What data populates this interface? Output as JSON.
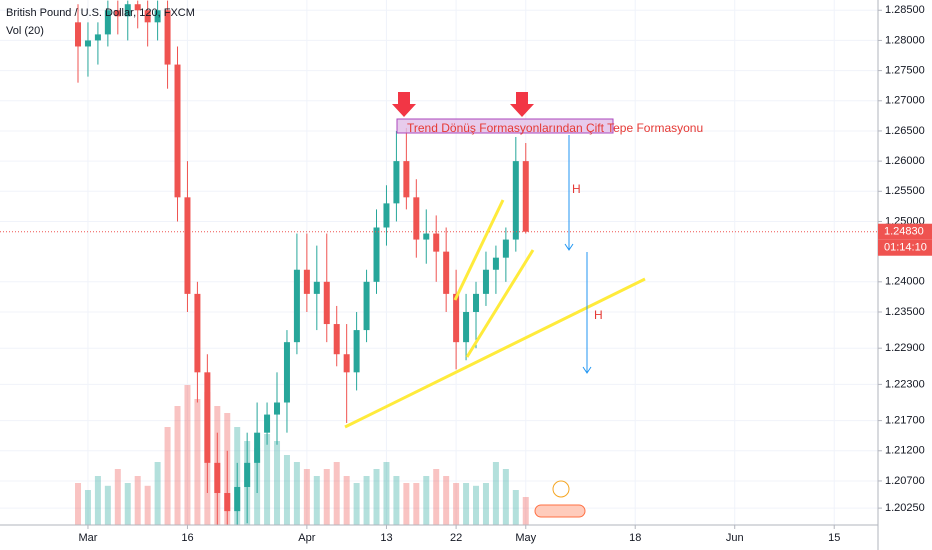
{
  "chart_data": {
    "type": "candlestick",
    "title": "British Pound / U.S. Dollar, 120, FXCM",
    "volume_title": "Vol (20)",
    "up_color": "#26a69a",
    "down_color": "#ef5350",
    "grid": true,
    "ylim": [
      1.1997,
      1.2867
    ],
    "xlim": [
      -8.84,
      79.4
    ],
    "yticks": [
      {
        "value": 1.285,
        "label": "1.28500"
      },
      {
        "value": 1.28,
        "label": "1.28000"
      },
      {
        "value": 1.275,
        "label": "1.27500"
      },
      {
        "value": 1.27,
        "label": "1.27000"
      },
      {
        "value": 1.265,
        "label": "1.26500"
      },
      {
        "value": 1.26,
        "label": "1.26000"
      },
      {
        "value": 1.255,
        "label": "1.25500"
      },
      {
        "value": 1.25,
        "label": "1.25000"
      },
      {
        "value": 1.24,
        "label": "1.24000"
      },
      {
        "value": 1.235,
        "label": "1.23500"
      },
      {
        "value": 1.229,
        "label": "1.22900"
      },
      {
        "value": 1.223,
        "label": "1.22300"
      },
      {
        "value": 1.217,
        "label": "1.21700"
      },
      {
        "value": 1.212,
        "label": "1.21200"
      },
      {
        "value": 1.207,
        "label": "1.20700"
      },
      {
        "value": 1.2025,
        "label": "1.20250"
      }
    ],
    "xticks": [
      {
        "value": 0,
        "label": "Mar"
      },
      {
        "value": 10,
        "label": "16"
      },
      {
        "value": 22,
        "label": "Apr"
      },
      {
        "value": 30,
        "label": "13"
      },
      {
        "value": 37,
        "label": "22"
      },
      {
        "value": 44,
        "label": "May"
      },
      {
        "value": 55,
        "label": "18"
      },
      {
        "value": 65,
        "label": "Jun"
      },
      {
        "value": 75,
        "label": "15"
      }
    ],
    "last_price": {
      "value": 1.2483,
      "label": "1.24830"
    },
    "countdown": "01:14:10",
    "annotation": "Trend Dönüş Formasyonlarından Çift Tepe Formasyonu",
    "height_labels": [
      "H",
      "H"
    ],
    "x": [
      -1,
      0,
      1,
      2,
      3,
      4,
      5,
      6,
      7,
      8,
      9,
      10,
      11,
      12,
      13,
      14,
      15,
      16,
      17,
      18,
      19,
      20,
      21,
      22,
      23,
      24,
      25,
      26,
      27,
      28,
      29,
      30,
      31,
      32,
      33,
      34,
      35,
      36,
      37,
      38,
      39,
      40,
      41,
      42,
      43,
      44
    ],
    "candles": {
      "open": [
        1.283,
        1.279,
        1.28,
        1.281,
        1.285,
        1.284,
        1.286,
        1.285,
        1.283,
        1.285,
        1.276,
        1.254,
        1.238,
        1.225,
        1.21,
        1.205,
        1.202,
        1.206,
        1.21,
        1.215,
        1.218,
        1.22,
        1.23,
        1.242,
        1.238,
        1.24,
        1.233,
        1.228,
        1.225,
        1.232,
        1.24,
        1.249,
        1.253,
        1.26,
        1.254,
        1.247,
        1.248,
        1.245,
        1.238,
        1.23,
        1.235,
        1.238,
        1.242,
        1.244,
        1.247,
        1.26
      ],
      "high": [
        1.286,
        1.283,
        1.283,
        1.2866,
        1.2866,
        1.2866,
        1.2866,
        1.2866,
        1.2866,
        1.2866,
        1.279,
        1.26,
        1.24,
        1.228,
        1.215,
        1.212,
        1.21,
        1.215,
        1.22,
        1.22,
        1.225,
        1.232,
        1.248,
        1.248,
        1.246,
        1.248,
        1.236,
        1.233,
        1.235,
        1.242,
        1.252,
        1.256,
        1.265,
        1.2655,
        1.257,
        1.252,
        1.251,
        1.249,
        1.242,
        1.238,
        1.24,
        1.245,
        1.246,
        1.249,
        1.264,
        1.263
      ],
      "low": [
        1.273,
        1.274,
        1.276,
        1.279,
        1.281,
        1.28,
        1.282,
        1.279,
        1.28,
        1.272,
        1.25,
        1.235,
        1.22,
        1.205,
        1.1997,
        1.1997,
        1.1997,
        1.2,
        1.205,
        1.213,
        1.213,
        1.215,
        1.228,
        1.235,
        1.232,
        1.23,
        1.226,
        1.2166,
        1.222,
        1.23,
        1.238,
        1.246,
        1.25,
        1.252,
        1.244,
        1.243,
        1.24,
        1.235,
        1.2255,
        1.227,
        1.229,
        1.236,
        1.238,
        1.24,
        1.245,
        1.248
      ],
      "close": [
        1.279,
        1.28,
        1.281,
        1.285,
        1.284,
        1.286,
        1.285,
        1.283,
        1.285,
        1.276,
        1.254,
        1.238,
        1.225,
        1.21,
        1.205,
        1.202,
        1.206,
        1.21,
        1.215,
        1.218,
        1.22,
        1.23,
        1.242,
        1.238,
        1.24,
        1.233,
        1.228,
        1.225,
        1.232,
        1.24,
        1.249,
        1.253,
        1.26,
        1.254,
        1.247,
        1.248,
        1.245,
        1.238,
        1.23,
        1.235,
        1.238,
        1.242,
        1.244,
        1.247,
        1.26,
        1.2483
      ]
    },
    "volume_lim": [
      0,
      100
    ],
    "volume": [
      30,
      25,
      35,
      28,
      40,
      30,
      35,
      28,
      45,
      70,
      85,
      100,
      90,
      95,
      85,
      80,
      70,
      60,
      55,
      65,
      60,
      50,
      45,
      40,
      35,
      40,
      45,
      35,
      30,
      35,
      40,
      45,
      35,
      30,
      30,
      35,
      40,
      35,
      30,
      30,
      28,
      30,
      45,
      40,
      25,
      20
    ]
  }
}
